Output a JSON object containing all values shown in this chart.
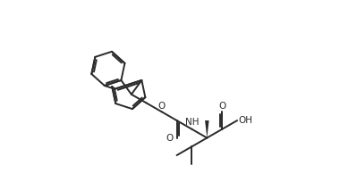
{
  "bg_color": "#ffffff",
  "line_color": "#2a2a2a",
  "lw": 1.4,
  "figsize": [
    3.8,
    2.04
  ],
  "dpi": 100,
  "xlim": [
    0,
    10
  ],
  "ylim": [
    0,
    5.4
  ]
}
